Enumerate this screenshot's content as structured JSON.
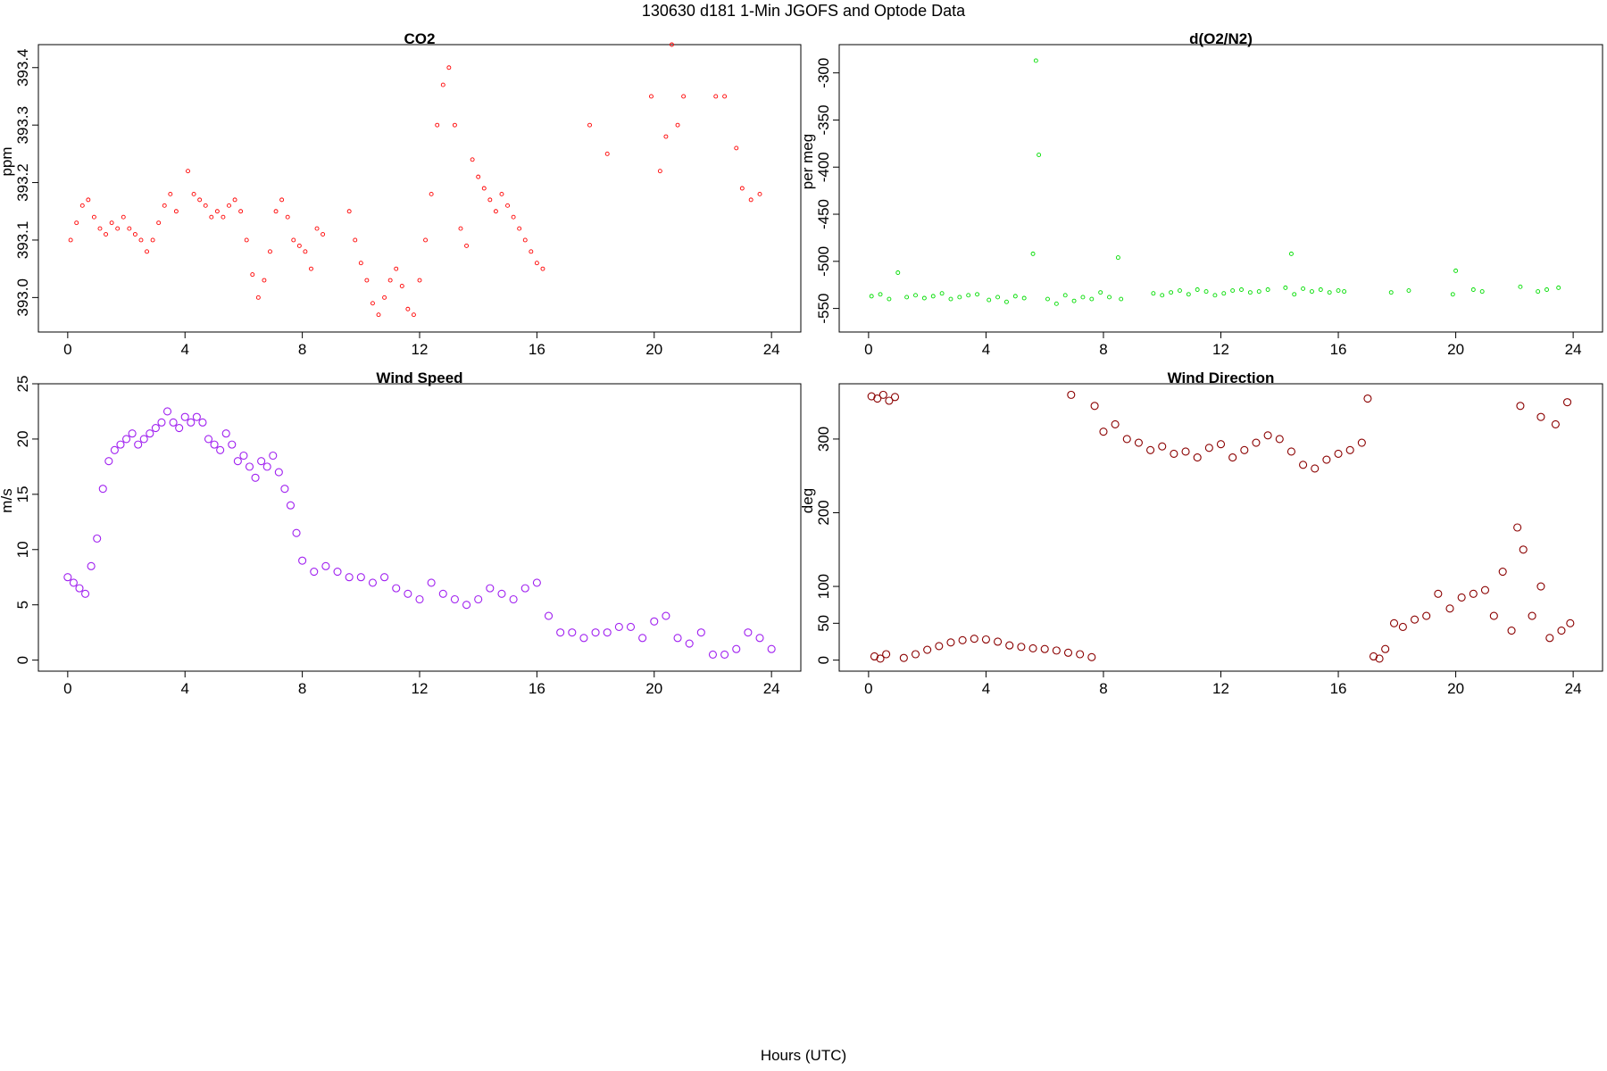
{
  "figure": {
    "title": "130630   d181   1-Min  JGOFS and Optode Data",
    "xlabel": "Hours (UTC)"
  },
  "chart_data": [
    {
      "type": "scatter",
      "title": "CO2",
      "ylabel": "ppm",
      "xlabel": "",
      "color": "#ff0000",
      "marker": "small-open-circle",
      "xlim": [
        -1,
        25
      ],
      "ylim": [
        392.94,
        393.44
      ],
      "xticks": [
        0,
        4,
        8,
        12,
        16,
        20,
        24
      ],
      "yticks": [
        393.0,
        393.1,
        393.2,
        393.3,
        393.4
      ],
      "ytick_labels": [
        "393.0",
        "393.1",
        "393.2",
        "393.3",
        "393.4"
      ],
      "grid": false,
      "series": [
        {
          "x": [
            0.1,
            0.3,
            0.5,
            0.7,
            0.9,
            1.1,
            1.3,
            1.5,
            1.7,
            1.9,
            2.1,
            2.3,
            2.5,
            2.7,
            2.9,
            3.1,
            3.3,
            3.5,
            3.7,
            4.1,
            4.3,
            4.5,
            4.7,
            4.9,
            5.1,
            5.3,
            5.5,
            5.7,
            5.9,
            6.1,
            6.3,
            6.5,
            6.7,
            6.9,
            7.1,
            7.3,
            7.5,
            7.7,
            7.9,
            8.1,
            8.3,
            8.5,
            8.7,
            9.6,
            9.8,
            10.0,
            10.2,
            10.4,
            10.6,
            10.8,
            11.0,
            11.2,
            11.4,
            11.6,
            11.8,
            12.0,
            12.2,
            12.4,
            12.6,
            12.8,
            13.0,
            13.2,
            13.4,
            13.6,
            13.8,
            14.0,
            14.2,
            14.4,
            14.6,
            14.8,
            15.0,
            15.2,
            15.4,
            15.6,
            15.8,
            16.0,
            16.2,
            17.8,
            18.4,
            19.9,
            20.2,
            20.4,
            20.6,
            20.8,
            21.0,
            22.1,
            22.4,
            22.8,
            23.0,
            23.3,
            23.6
          ],
          "y": [
            393.1,
            393.13,
            393.16,
            393.17,
            393.14,
            393.12,
            393.11,
            393.13,
            393.12,
            393.14,
            393.12,
            393.11,
            393.1,
            393.08,
            393.1,
            393.13,
            393.16,
            393.18,
            393.15,
            393.22,
            393.18,
            393.17,
            393.16,
            393.14,
            393.15,
            393.14,
            393.16,
            393.17,
            393.15,
            393.1,
            393.04,
            393.0,
            393.03,
            393.08,
            393.15,
            393.17,
            393.14,
            393.1,
            393.09,
            393.08,
            393.05,
            393.12,
            393.11,
            393.15,
            393.1,
            393.06,
            393.03,
            392.99,
            392.97,
            393.0,
            393.03,
            393.05,
            393.02,
            392.98,
            392.97,
            393.03,
            393.1,
            393.18,
            393.3,
            393.37,
            393.4,
            393.3,
            393.12,
            393.09,
            393.24,
            393.21,
            393.19,
            393.17,
            393.15,
            393.18,
            393.16,
            393.14,
            393.12,
            393.1,
            393.08,
            393.06,
            393.05,
            393.3,
            393.25,
            393.35,
            393.22,
            393.28,
            393.44,
            393.3,
            393.35,
            393.35,
            393.35,
            393.26,
            393.19,
            393.17,
            393.18
          ]
        }
      ]
    },
    {
      "type": "scatter",
      "title": "d(O2/N2)",
      "ylabel": "per meg",
      "xlabel": "",
      "color": "#00dd00",
      "marker": "small-open-circle",
      "xlim": [
        -1,
        25
      ],
      "ylim": [
        -575,
        -270
      ],
      "xticks": [
        0,
        4,
        8,
        12,
        16,
        20,
        24
      ],
      "yticks": [
        -550,
        -500,
        -450,
        -400,
        -350,
        -300
      ],
      "ytick_labels": [
        "-550",
        "-500",
        "-450",
        "-400",
        "-350",
        "-300"
      ],
      "grid": false,
      "series": [
        {
          "x": [
            0.1,
            0.4,
            0.7,
            1.0,
            1.3,
            1.6,
            1.9,
            2.2,
            2.5,
            2.8,
            3.1,
            3.4,
            3.7,
            4.1,
            4.4,
            4.7,
            5.0,
            5.3,
            5.6,
            5.7,
            5.8,
            6.1,
            6.4,
            6.7,
            7.0,
            7.3,
            7.6,
            7.9,
            8.2,
            8.5,
            8.6,
            9.7,
            10.0,
            10.3,
            10.6,
            10.9,
            11.2,
            11.5,
            11.8,
            12.1,
            12.4,
            12.7,
            13.0,
            13.3,
            13.6,
            14.2,
            14.4,
            14.5,
            14.8,
            15.1,
            15.4,
            15.7,
            16.0,
            16.2,
            17.8,
            18.4,
            19.9,
            20.0,
            20.6,
            20.9,
            22.2,
            22.8,
            23.1,
            23.5
          ],
          "y": [
            -537,
            -535,
            -540,
            -512,
            -538,
            -536,
            -539,
            -537,
            -534,
            -540,
            -538,
            -536,
            -535,
            -541,
            -538,
            -543,
            -537,
            -539,
            -492,
            -287,
            -387,
            -540,
            -545,
            -536,
            -542,
            -538,
            -540,
            -533,
            -538,
            -496,
            -540,
            -534,
            -536,
            -533,
            -531,
            -535,
            -530,
            -532,
            -536,
            -534,
            -531,
            -530,
            -533,
            -532,
            -530,
            -528,
            -492,
            -535,
            -529,
            -532,
            -530,
            -533,
            -531,
            -532,
            -533,
            -531,
            -535,
            -510,
            -530,
            -532,
            -527,
            -532,
            -530,
            -528
          ]
        }
      ]
    },
    {
      "type": "scatter",
      "title": "Wind Speed",
      "ylabel": "m/s",
      "xlabel": "",
      "color": "#a020f0",
      "marker": "open-circle",
      "xlim": [
        -1,
        25
      ],
      "ylim": [
        -1,
        25
      ],
      "xticks": [
        0,
        4,
        8,
        12,
        16,
        20,
        24
      ],
      "yticks": [
        0,
        5,
        10,
        15,
        20,
        25
      ],
      "ytick_labels": [
        "0",
        "5",
        "10",
        "15",
        "20",
        "25"
      ],
      "grid": false,
      "series": [
        {
          "x": [
            0.0,
            0.2,
            0.4,
            0.6,
            0.8,
            1.0,
            1.2,
            1.4,
            1.6,
            1.8,
            2.0,
            2.2,
            2.4,
            2.6,
            2.8,
            3.0,
            3.2,
            3.4,
            3.6,
            3.8,
            4.0,
            4.2,
            4.4,
            4.6,
            4.8,
            5.0,
            5.2,
            5.4,
            5.6,
            5.8,
            6.0,
            6.2,
            6.4,
            6.6,
            6.8,
            7.0,
            7.2,
            7.4,
            7.6,
            7.8,
            8.0,
            8.4,
            8.8,
            9.2,
            9.6,
            10.0,
            10.4,
            10.8,
            11.2,
            11.6,
            12.0,
            12.4,
            12.8,
            13.2,
            13.6,
            14.0,
            14.4,
            14.8,
            15.2,
            15.6,
            16.0,
            16.4,
            16.8,
            17.2,
            17.6,
            18.0,
            18.4,
            18.8,
            19.2,
            19.6,
            20.0,
            20.4,
            20.8,
            21.2,
            21.6,
            22.0,
            22.4,
            22.8,
            23.2,
            23.6,
            24.0
          ],
          "y": [
            7.5,
            7.0,
            6.5,
            6.0,
            8.5,
            11.0,
            15.5,
            18.0,
            19.0,
            19.5,
            20.0,
            20.5,
            19.5,
            20.0,
            20.5,
            21.0,
            21.5,
            22.5,
            21.5,
            21.0,
            22.0,
            21.5,
            22.0,
            21.5,
            20.0,
            19.5,
            19.0,
            20.5,
            19.5,
            18.0,
            18.5,
            17.5,
            16.5,
            18.0,
            17.5,
            18.5,
            17.0,
            15.5,
            14.0,
            11.5,
            9.0,
            8.0,
            8.5,
            8.0,
            7.5,
            7.5,
            7.0,
            7.5,
            6.5,
            6.0,
            5.5,
            7.0,
            6.0,
            5.5,
            5.0,
            5.5,
            6.5,
            6.0,
            5.5,
            6.5,
            7.0,
            4.0,
            2.5,
            2.5,
            2.0,
            2.5,
            2.5,
            3.0,
            3.0,
            2.0,
            3.5,
            4.0,
            2.0,
            1.5,
            2.5,
            0.5,
            0.5,
            1.0,
            2.5,
            2.0,
            1.0
          ]
        }
      ]
    },
    {
      "type": "scatter",
      "title": "Wind Direction",
      "ylabel": "deg",
      "xlabel": "",
      "color": "#8b0000",
      "marker": "open-circle",
      "xlim": [
        -1,
        25
      ],
      "ylim": [
        -15,
        375
      ],
      "xticks": [
        0,
        4,
        8,
        12,
        16,
        20,
        24
      ],
      "yticks": [
        0,
        50,
        100,
        200,
        300
      ],
      "ytick_labels": [
        "0",
        "50",
        "100",
        "200",
        "300"
      ],
      "grid": false,
      "series": [
        {
          "x": [
            0.1,
            0.3,
            0.5,
            0.7,
            0.9,
            0.2,
            0.4,
            0.6,
            1.2,
            1.6,
            2.0,
            2.4,
            2.8,
            3.2,
            3.6,
            4.0,
            4.4,
            4.8,
            5.2,
            5.6,
            6.0,
            6.4,
            6.8,
            7.2,
            7.6,
            6.9,
            7.7,
            8.0,
            8.4,
            8.8,
            9.2,
            9.6,
            10.0,
            10.4,
            10.8,
            11.2,
            11.6,
            12.0,
            12.4,
            12.8,
            13.2,
            13.6,
            14.0,
            14.4,
            14.8,
            15.2,
            15.6,
            16.0,
            16.4,
            16.8,
            17.0,
            17.2,
            17.4,
            17.6,
            17.9,
            18.2,
            18.6,
            19.0,
            19.4,
            19.8,
            20.2,
            20.6,
            21.0,
            21.3,
            21.6,
            21.9,
            22.1,
            22.3,
            22.6,
            22.9,
            23.2,
            23.6,
            23.9,
            22.2,
            22.9,
            23.4,
            23.8
          ],
          "y": [
            358,
            355,
            360,
            352,
            357,
            5,
            2,
            8,
            3,
            8,
            14,
            19,
            24,
            27,
            29,
            28,
            25,
            20,
            18,
            16,
            15,
            13,
            10,
            8,
            4,
            360,
            345,
            310,
            320,
            300,
            295,
            285,
            290,
            280,
            283,
            275,
            288,
            293,
            275,
            285,
            295,
            305,
            300,
            283,
            265,
            260,
            272,
            280,
            285,
            295,
            355,
            5,
            2,
            15,
            50,
            45,
            55,
            60,
            90,
            70,
            85,
            90,
            95,
            60,
            120,
            40,
            180,
            150,
            60,
            100,
            30,
            40,
            50,
            345,
            330,
            320,
            350
          ]
        }
      ]
    }
  ]
}
